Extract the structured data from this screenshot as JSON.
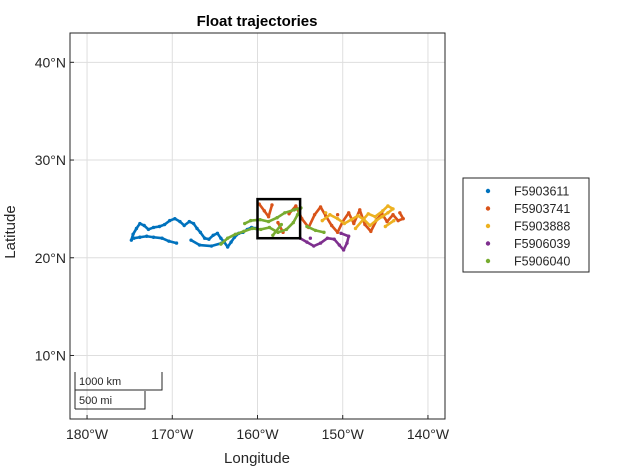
{
  "chart_data": {
    "type": "scatter",
    "title": "Float trajectories",
    "xlabel": "Longitude",
    "ylabel": "Latitude",
    "xlim": [
      -182,
      -138
    ],
    "ylim": [
      3.5,
      43
    ],
    "grid": true,
    "legend_position": "outside-right",
    "x_ticks": [
      {
        "value": -180,
        "label": "180°W"
      },
      {
        "value": -170,
        "label": "170°W"
      },
      {
        "value": -160,
        "label": "160°W"
      },
      {
        "value": -150,
        "label": "150°W"
      },
      {
        "value": -140,
        "label": "140°W"
      }
    ],
    "y_ticks": [
      {
        "value": 10,
        "label": "10°N"
      },
      {
        "value": 20,
        "label": "20°N"
      },
      {
        "value": 30,
        "label": "30°N"
      },
      {
        "value": 40,
        "label": "40°N"
      }
    ],
    "region_box": {
      "lon": [
        -160,
        -155
      ],
      "lat": [
        22,
        26
      ]
    },
    "scale_bar": {
      "km_label": "1000 km",
      "mi_label": "500 mi"
    },
    "series": [
      {
        "name": "F5903611",
        "color": "#0072bd",
        "points": [
          [
            -174.8,
            21.8
          ],
          [
            -174.6,
            22.4
          ],
          [
            -174.2,
            23.0
          ],
          [
            -173.8,
            23.5
          ],
          [
            -173.3,
            23.3
          ],
          [
            -172.8,
            22.9
          ],
          [
            -172.2,
            23.1
          ],
          [
            -171.5,
            23.2
          ],
          [
            -170.9,
            23.4
          ],
          [
            -170.3,
            23.8
          ],
          [
            -169.7,
            24.0
          ],
          [
            -169.1,
            23.7
          ],
          [
            -168.6,
            23.3
          ],
          [
            -168.0,
            23.7
          ],
          [
            -167.5,
            23.5
          ],
          [
            -167.1,
            23.0
          ],
          [
            -166.7,
            22.6
          ],
          [
            -166.2,
            22.0
          ],
          [
            -165.7,
            21.9
          ],
          [
            -165.2,
            22.3
          ],
          [
            -164.7,
            22.5
          ],
          [
            -164.3,
            22.0
          ],
          [
            -163.9,
            21.6
          ],
          [
            -163.5,
            21.1
          ],
          [
            -163.1,
            21.6
          ],
          [
            -162.7,
            22.1
          ],
          [
            -162.2,
            22.5
          ],
          [
            -161.7,
            22.6
          ],
          [
            -161.2,
            22.9
          ],
          [
            -160.7,
            23.1
          ],
          [
            -160.2,
            23.0
          ],
          [
            -169.5,
            21.5
          ],
          [
            -170.4,
            21.7
          ],
          [
            -171.2,
            22.0
          ],
          [
            -172.2,
            22.1
          ],
          [
            -173.0,
            22.2
          ],
          [
            -173.8,
            22.1
          ],
          [
            -174.5,
            22.0
          ],
          [
            -167.8,
            21.8
          ],
          [
            -166.8,
            21.3
          ],
          [
            -165.4,
            21.2
          ],
          [
            -164.2,
            21.5
          ]
        ]
      },
      {
        "name": "F5903741",
        "color": "#d95319",
        "points": [
          [
            -159.8,
            25.5
          ],
          [
            -159.2,
            24.8
          ],
          [
            -158.7,
            24.2
          ],
          [
            -158.3,
            25.4
          ],
          [
            -157.6,
            23.6
          ],
          [
            -157.0,
            22.6
          ],
          [
            -156.3,
            24.5
          ],
          [
            -155.5,
            25.3
          ],
          [
            -154.8,
            24.0
          ],
          [
            -154.0,
            23.1
          ],
          [
            -153.3,
            24.4
          ],
          [
            -152.6,
            25.2
          ],
          [
            -152.0,
            24.3
          ],
          [
            -151.3,
            23.3
          ],
          [
            -150.6,
            22.6
          ],
          [
            -150.0,
            23.7
          ],
          [
            -149.3,
            24.6
          ],
          [
            -148.7,
            23.5
          ],
          [
            -148.0,
            24.9
          ],
          [
            -147.4,
            23.4
          ],
          [
            -146.7,
            22.7
          ],
          [
            -146.0,
            23.9
          ],
          [
            -145.4,
            24.5
          ],
          [
            -144.8,
            23.7
          ],
          [
            -144.1,
            24.4
          ],
          [
            -143.5,
            23.8
          ],
          [
            -142.9,
            24.0
          ],
          [
            -143.3,
            24.6
          ],
          [
            -150.6,
            24.4
          ]
        ]
      },
      {
        "name": "F5903888",
        "color": "#edb120",
        "points": [
          [
            -152.4,
            23.8
          ],
          [
            -151.5,
            24.4
          ],
          [
            -150.6,
            24.0
          ],
          [
            -149.8,
            23.5
          ],
          [
            -149.0,
            23.9
          ],
          [
            -148.2,
            24.3
          ],
          [
            -147.5,
            23.9
          ],
          [
            -146.8,
            23.3
          ],
          [
            -146.1,
            23.8
          ],
          [
            -145.4,
            24.2
          ],
          [
            -144.7,
            24.6
          ],
          [
            -144.1,
            25.0
          ],
          [
            -144.7,
            25.3
          ],
          [
            -145.3,
            24.8
          ],
          [
            -146.2,
            24.2
          ],
          [
            -147.0,
            24.5
          ],
          [
            -148.5,
            23.0
          ],
          [
            -145.0,
            23.2
          ],
          [
            -144.0,
            23.8
          ],
          [
            -152.0,
            24.6
          ]
        ]
      },
      {
        "name": "F5906039",
        "color": "#7e2f8e",
        "points": [
          [
            -155.0,
            22.0
          ],
          [
            -154.2,
            21.6
          ],
          [
            -153.4,
            21.2
          ],
          [
            -152.6,
            21.5
          ],
          [
            -151.8,
            22.0
          ],
          [
            -151.0,
            21.9
          ],
          [
            -150.4,
            21.3
          ],
          [
            -149.9,
            20.8
          ],
          [
            -149.5,
            21.5
          ],
          [
            -149.3,
            22.2
          ],
          [
            -150.2,
            22.5
          ],
          [
            -153.8,
            22.0
          ]
        ]
      },
      {
        "name": "F5906040",
        "color": "#77ac30",
        "points": [
          [
            -164.3,
            21.4
          ],
          [
            -163.5,
            22.0
          ],
          [
            -162.6,
            22.4
          ],
          [
            -161.6,
            22.7
          ],
          [
            -160.6,
            23.0
          ],
          [
            -159.6,
            22.9
          ],
          [
            -158.6,
            23.1
          ],
          [
            -157.6,
            22.6
          ],
          [
            -156.6,
            22.9
          ],
          [
            -155.8,
            23.6
          ],
          [
            -155.3,
            24.4
          ],
          [
            -154.9,
            25.1
          ],
          [
            -155.7,
            24.9
          ],
          [
            -156.8,
            24.6
          ],
          [
            -157.7,
            24.1
          ],
          [
            -158.7,
            23.7
          ],
          [
            -159.7,
            23.9
          ],
          [
            -160.8,
            23.8
          ],
          [
            -161.5,
            23.5
          ],
          [
            -154.2,
            23.2
          ],
          [
            -153.2,
            22.8
          ],
          [
            -152.2,
            22.6
          ],
          [
            -157.2,
            23.4
          ],
          [
            -158.2,
            22.3
          ]
        ]
      }
    ]
  }
}
